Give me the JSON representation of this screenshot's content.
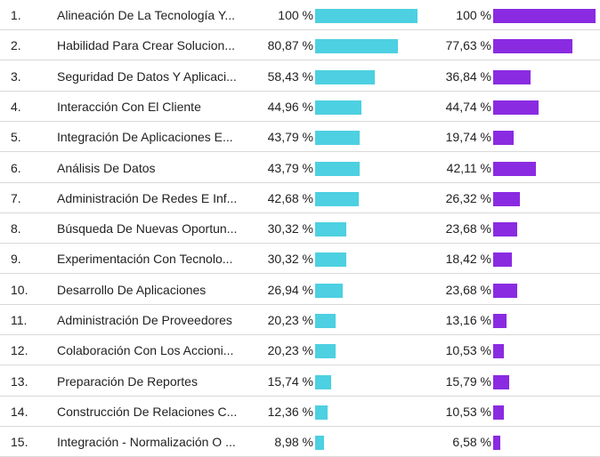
{
  "colors": {
    "series1": "#4dd0e1",
    "series2": "#8a2be2"
  },
  "chart_data": {
    "type": "bar",
    "orientation": "horizontal-table",
    "categories": [
      "Alineación De La Tecnología Y...",
      "Habilidad Para Crear Solucion...",
      "Seguridad De Datos Y Aplicaci...",
      "Interacción Con El Cliente",
      "Integración De Aplicaciones E...",
      "Análisis De Datos",
      "Administración De Redes E Inf...",
      "Búsqueda De Nuevas Oportun...",
      "Experimentación Con Tecnolo...",
      "Desarrollo De Aplicaciones",
      "Administración De Proveedores",
      "Colaboración Con Los Accioni...",
      "Preparación De Reportes",
      "Construcción De Relaciones C...",
      "Integración - Normalización O ..."
    ],
    "series": [
      {
        "values": [
          100,
          80.87,
          58.43,
          44.96,
          43.79,
          43.79,
          42.68,
          30.32,
          30.32,
          26.94,
          20.23,
          20.23,
          15.74,
          12.36,
          8.98
        ],
        "labels": [
          "100 %",
          "80,87 %",
          "58,43 %",
          "44,96 %",
          "43,79 %",
          "43,79 %",
          "42,68 %",
          "30,32 %",
          "30,32 %",
          "26,94 %",
          "20,23 %",
          "20,23 %",
          "15,74 %",
          "12,36 %",
          "8,98 %"
        ]
      },
      {
        "values": [
          100,
          77.63,
          36.84,
          44.74,
          19.74,
          42.11,
          26.32,
          23.68,
          18.42,
          23.68,
          13.16,
          10.53,
          15.79,
          10.53,
          6.58
        ],
        "labels": [
          "100 %",
          "77,63 %",
          "36,84 %",
          "44,74 %",
          "19,74 %",
          "42,11 %",
          "26,32 %",
          "23,68 %",
          "18,42 %",
          "23,68 %",
          "13,16 %",
          "10,53 %",
          "15,79 %",
          "10,53 %",
          "6,58 %"
        ]
      }
    ],
    "ranks": [
      "1.",
      "2.",
      "3.",
      "4.",
      "5.",
      "6.",
      "7.",
      "8.",
      "9.",
      "10.",
      "11.",
      "12.",
      "13.",
      "14.",
      "15."
    ],
    "xlim": [
      0,
      100
    ]
  }
}
